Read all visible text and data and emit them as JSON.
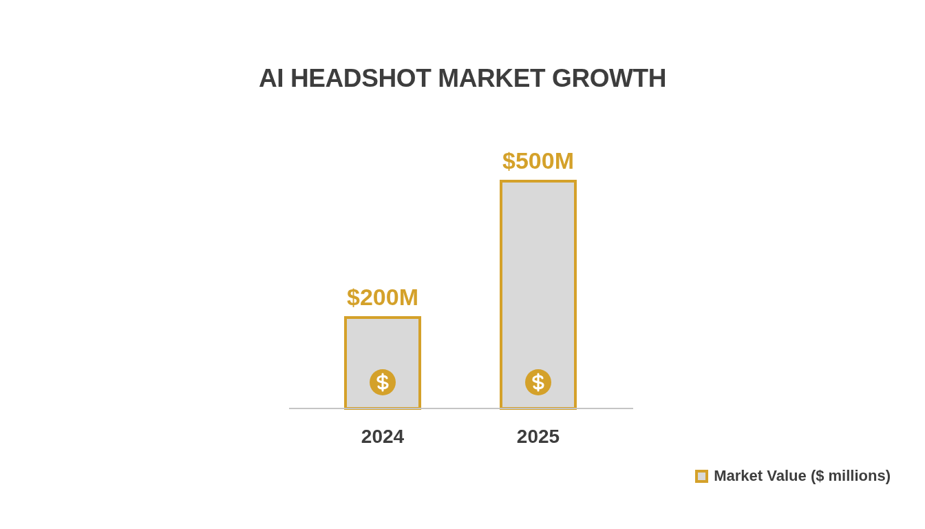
{
  "chart_data": {
    "type": "bar",
    "title": "AI HEADSHOT MARKET GROWTH",
    "categories": [
      "2024",
      "2025"
    ],
    "series": [
      {
        "name": "Market Value ($ millions)",
        "color": "#d4a12a",
        "values": [
          200,
          500
        ],
        "value_labels": [
          "$200M",
          "$500M"
        ]
      }
    ],
    "legend": "bottom right"
  }
}
